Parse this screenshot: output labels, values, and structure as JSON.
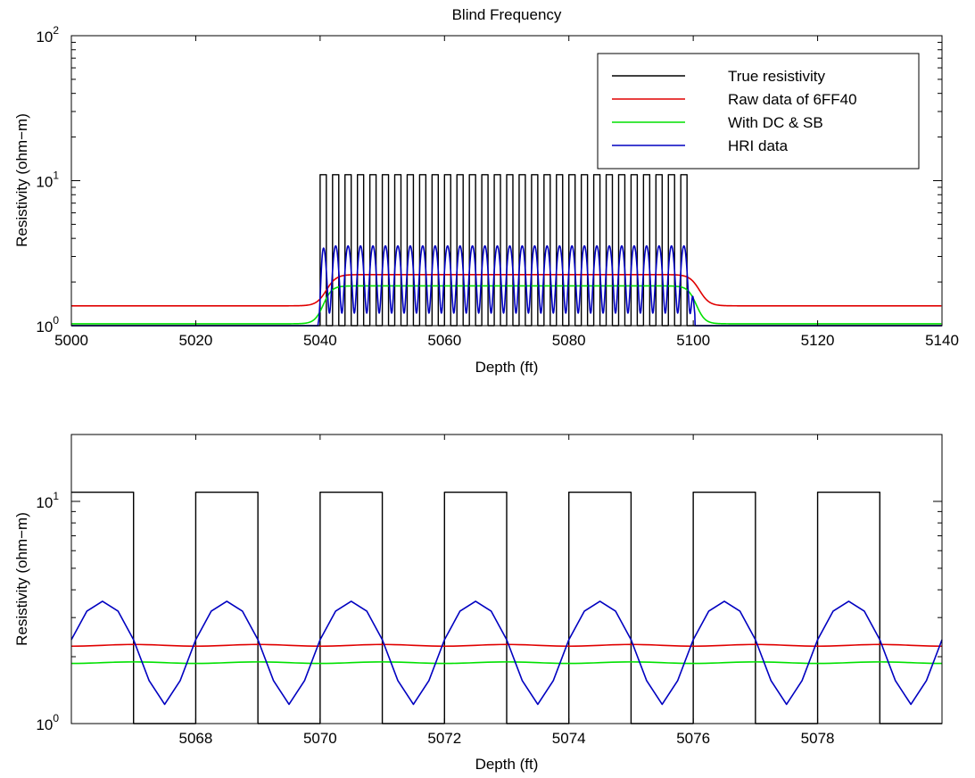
{
  "chart_data": [
    {
      "type": "line",
      "title": "Blind Frequency",
      "xlabel": "Depth (ft)",
      "ylabel": "Resistivity (ohm−m)",
      "yscale": "log",
      "xlim": [
        5000,
        5140
      ],
      "ylim": [
        1,
        100
      ],
      "xticks": [
        5000,
        5020,
        5040,
        5060,
        5080,
        5100,
        5120,
        5140
      ],
      "xtick_labels": [
        "5000",
        "5020",
        "5040",
        "5060",
        "5080",
        "5100",
        "5120",
        "5140"
      ],
      "yticks": [
        {
          "base": "10",
          "exp": "0",
          "value": 1
        },
        {
          "base": "10",
          "exp": "1",
          "value": 10
        },
        {
          "base": "10",
          "exp": "2",
          "value": 100
        }
      ],
      "legend_position": "top-right",
      "legend": [
        {
          "label": "True resistivity",
          "color": "#000000"
        },
        {
          "label": "Raw data of 6FF40",
          "color": "#e00000"
        },
        {
          "label": "With DC & SB",
          "color": "#00e000"
        },
        {
          "label": "HRI data",
          "color": "#0000c0"
        }
      ],
      "model": {
        "background_resistivity": 1.0,
        "bed_resistivity": 11.0,
        "bed_start": 5040,
        "bed_end": 5100,
        "bed_period": 2,
        "bed_duty": 0.5,
        "raw_outside": 1.37,
        "raw_inside": 2.25,
        "dcsb_outside": 1.03,
        "dcsb_inside": 1.88,
        "hri_min": 1.22,
        "hri_max": 3.55
      }
    },
    {
      "type": "line",
      "title": "",
      "xlabel": "Depth (ft)",
      "ylabel": "Resistivity (ohm−m)",
      "yscale": "log",
      "xlim": [
        5066,
        5080
      ],
      "ylim": [
        1,
        20
      ],
      "xticks": [
        5068,
        5070,
        5072,
        5074,
        5076,
        5078
      ],
      "xtick_labels": [
        "5068",
        "5070",
        "5072",
        "5074",
        "5076",
        "5078"
      ],
      "yticks": [
        {
          "base": "10",
          "exp": "0",
          "value": 1
        },
        {
          "base": "10",
          "exp": "1",
          "value": 10
        }
      ],
      "series": [
        {
          "name": "True resistivity",
          "color": "#000000",
          "high": 11.0,
          "low": 1.0,
          "period": 2,
          "high_start": 5066,
          "high_end": 5067
        },
        {
          "name": "Raw data of 6FF40",
          "color": "#e00000",
          "level": 2.25,
          "ripple": 0.02
        },
        {
          "name": "With DC & SB",
          "color": "#00e000",
          "level": 1.88,
          "ripple": 0.015
        },
        {
          "name": "HRI data",
          "color": "#0000c0",
          "min": 1.22,
          "max": 3.55,
          "peak_at": 5066.5,
          "period": 2
        }
      ]
    }
  ]
}
